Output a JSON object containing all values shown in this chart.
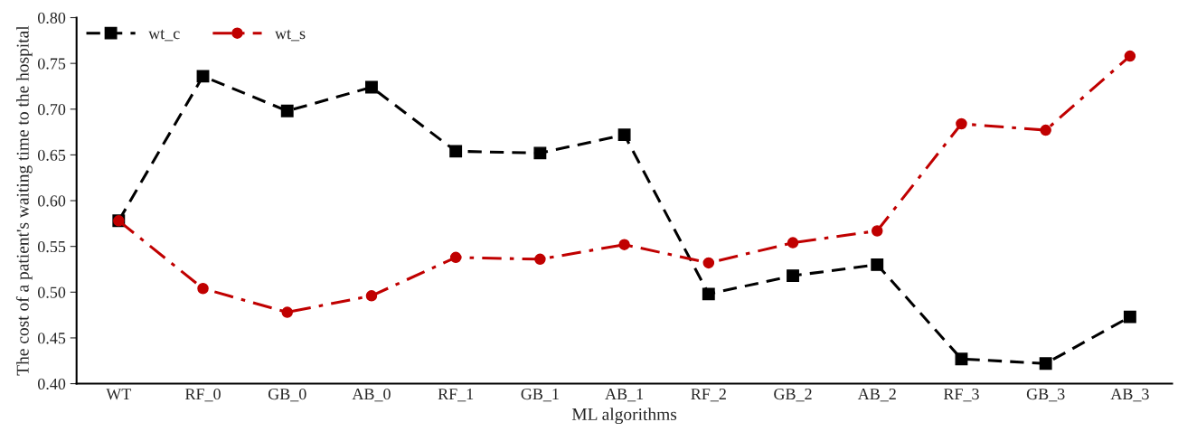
{
  "chart_data": {
    "type": "line",
    "xlabel": "ML algorithms",
    "ylabel": "The cost of a patient's waiting time to the hospital",
    "categories": [
      "WT",
      "RF_0",
      "GB_0",
      "AB_0",
      "RF_1",
      "GB_1",
      "AB_1",
      "RF_2",
      "GB_2",
      "AB_2",
      "RF_3",
      "GB_3",
      "AB_3"
    ],
    "series": [
      {
        "name": "wt_c",
        "color": "#000000",
        "marker": "square",
        "line_style": "dashed",
        "values": [
          0.578,
          0.736,
          0.698,
          0.724,
          0.654,
          0.652,
          0.672,
          0.498,
          0.518,
          0.53,
          0.427,
          0.422,
          0.473
        ]
      },
      {
        "name": "wt_s",
        "color": "#c00000",
        "marker": "circle",
        "line_style": "dashdot",
        "values": [
          0.578,
          0.504,
          0.478,
          0.496,
          0.538,
          0.536,
          0.552,
          0.532,
          0.554,
          0.567,
          0.684,
          0.677,
          0.758
        ]
      }
    ],
    "ylim": [
      0.4,
      0.8
    ],
    "yticks": [
      {
        "value": 0.4,
        "label": "0.40"
      },
      {
        "value": 0.45,
        "label": "0.45"
      },
      {
        "value": 0.5,
        "label": "0.50"
      },
      {
        "value": 0.55,
        "label": "0.55"
      },
      {
        "value": 0.6,
        "label": "0.60"
      },
      {
        "value": 0.65,
        "label": "0.65"
      },
      {
        "value": 0.7,
        "label": "0.70"
      },
      {
        "value": 0.75,
        "label": "0.75"
      },
      {
        "value": 0.8,
        "label": "0.80"
      }
    ],
    "grid": false,
    "legend": "top left"
  }
}
